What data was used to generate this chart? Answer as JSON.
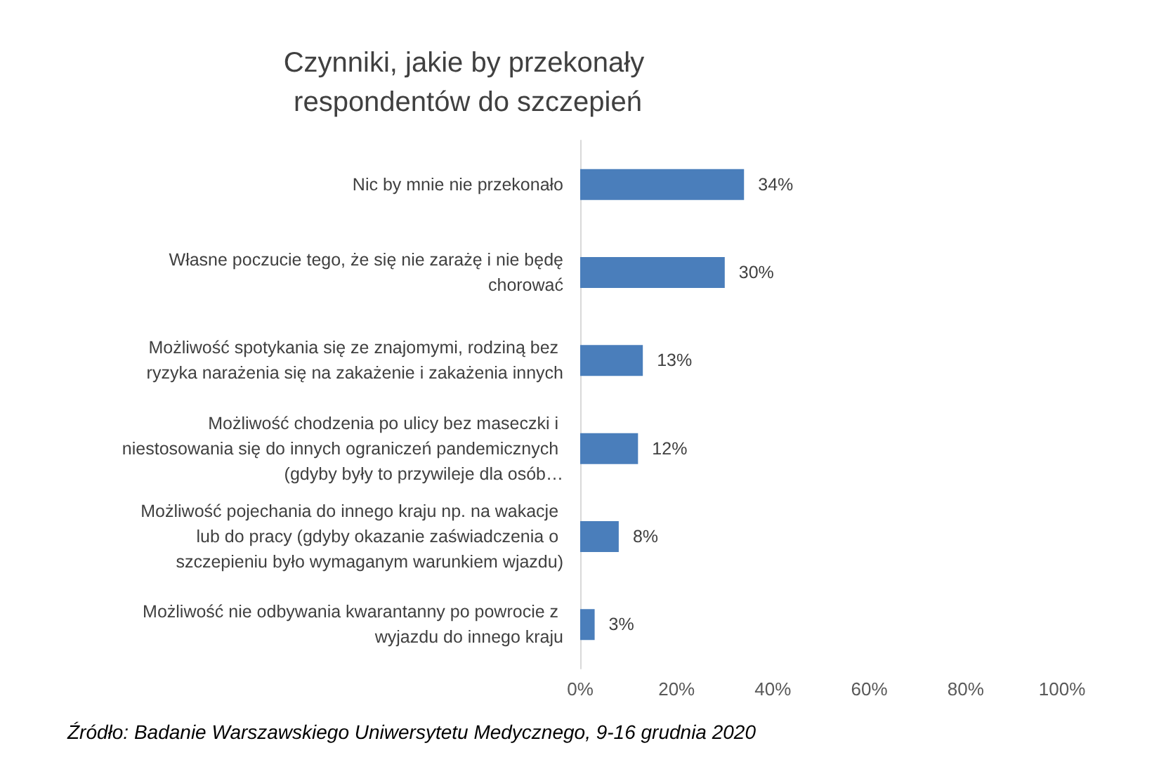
{
  "chart_data": {
    "type": "bar",
    "orientation": "horizontal",
    "title": "Czynniki, jakie by przekonały respondentów do szczepień",
    "categories": [
      "Nic by mnie nie przekonało",
      "Własne poczucie tego, że się nie zarażę i nie będę chorować",
      "Możliwość spotykania się ze znajomymi, rodziną bez ryzyka narażenia się na zakażenie i zakażenia innych",
      "Możliwość chodzenia po ulicy bez maseczki i niestosowania się do innych ograniczeń pandemicznych (gdyby były to przywileje dla osób…",
      "Możliwość pojechania do innego kraju np. na wakacje lub do pracy (gdyby okazanie zaświadczenia o szczepieniu było wymaganym warunkiem wjazdu)",
      "Możliwość nie odbywania kwarantanny po powrocie z wyjazdu do innego kraju"
    ],
    "values": [
      34,
      30,
      13,
      12,
      8,
      3
    ],
    "value_labels": [
      "34%",
      "30%",
      "13%",
      "12%",
      "8%",
      "3%"
    ],
    "color": "#4a7ebb",
    "xlim": [
      0,
      100
    ],
    "xticks": [
      {
        "value": 0,
        "label": "0%"
      },
      {
        "value": 20,
        "label": "20%"
      },
      {
        "value": 40,
        "label": "40%"
      },
      {
        "value": 60,
        "label": "60%"
      },
      {
        "value": 80,
        "label": "80%"
      },
      {
        "value": 100,
        "label": "100%"
      }
    ],
    "grid": false,
    "annotations": [
      "Źródło: Badanie Warszawskiego Uniwersytetu Medycznego, 9-16 grudnia 2020"
    ]
  }
}
